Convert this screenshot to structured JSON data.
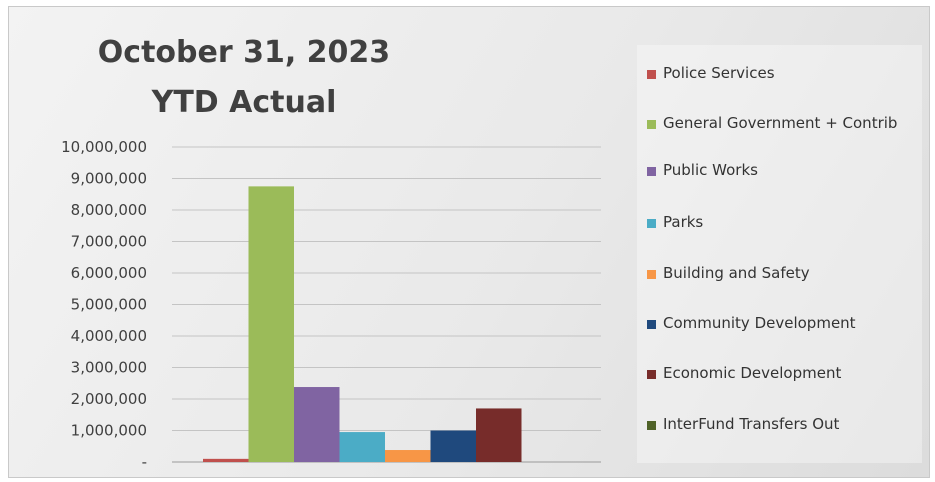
{
  "chart_data": {
    "type": "bar",
    "title_lines": [
      "October 31, 2023",
      "YTD Actual"
    ],
    "ylim": [
      0,
      10000000
    ],
    "yticks": [
      0,
      1000000,
      2000000,
      3000000,
      4000000,
      5000000,
      6000000,
      7000000,
      8000000,
      9000000,
      10000000
    ],
    "ytick_labels": [
      "-",
      "1,000,000",
      "2,000,000",
      "3,000,000",
      "4,000,000",
      "5,000,000",
      "6,000,000",
      "7,000,000",
      "8,000,000",
      "9,000,000",
      "10,000,000"
    ],
    "grid": true,
    "legend_position": "right",
    "series": [
      {
        "name": "Police Services",
        "value": 100000,
        "color": "#c0504d"
      },
      {
        "name": "General Government + Contrib",
        "value": 8750000,
        "color": "#9bbb59"
      },
      {
        "name": "Public Works",
        "value": 2380000,
        "color": "#8064a2"
      },
      {
        "name": "Parks",
        "value": 950000,
        "color": "#4bacc6"
      },
      {
        "name": "Building and Safety",
        "value": 380000,
        "color": "#f79646"
      },
      {
        "name": "Community Development",
        "value": 1000000,
        "color": "#1f497d"
      },
      {
        "name": "Economic Development",
        "value": 1700000,
        "color": "#772c2a"
      },
      {
        "name": "InterFund Transfers Out",
        "value": 0,
        "color": "#4f6228"
      }
    ]
  }
}
